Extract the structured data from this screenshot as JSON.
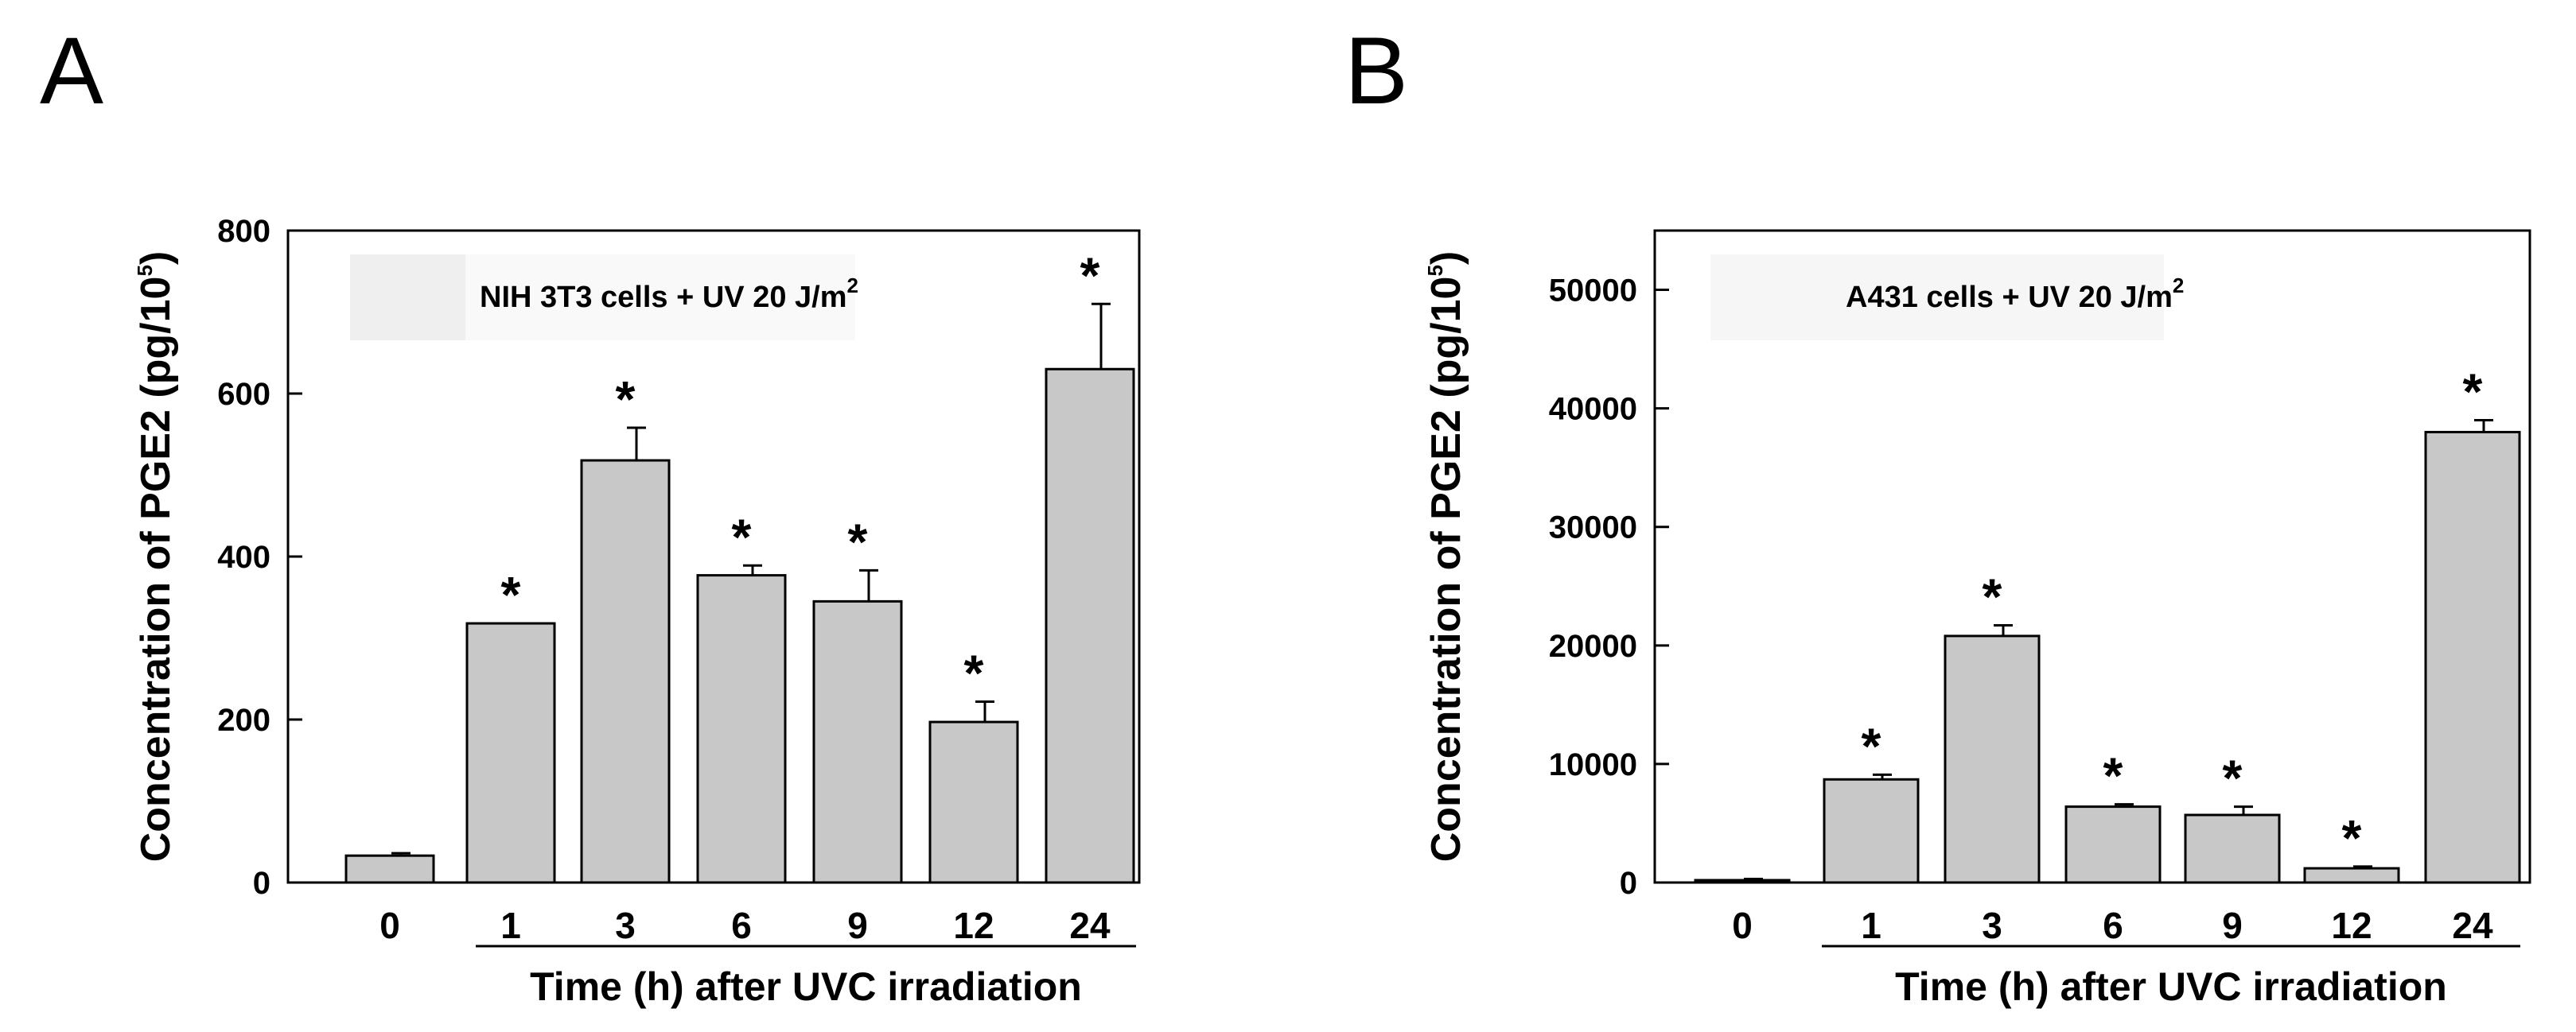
{
  "figure": {
    "background": "#ffffff",
    "bar_color": "#c8c8c8",
    "stroke_color": "#000000"
  },
  "chart_data": [
    {
      "type": "bar",
      "panel_label": "A",
      "legend_label": "NIH 3T3 cells + UV 20 J/m",
      "legend_superscript": "2",
      "ylabel": "Concentration of PGE2 (pg/10",
      "ylabel_superscript": "5",
      "ylabel_suffix": ")",
      "xlabel": "Time (h) after UVC irradiation",
      "categories": [
        "0",
        "1",
        "3",
        "6",
        "9",
        "12",
        "24"
      ],
      "values": [
        33,
        318,
        518,
        377,
        345,
        197,
        630
      ],
      "errors": [
        3,
        0,
        40,
        12,
        38,
        25,
        80
      ],
      "significance": [
        "",
        "*",
        "*",
        "*",
        "*",
        "*",
        "*"
      ],
      "ylim": [
        0,
        800
      ],
      "yticks": [
        "0",
        "200",
        "400",
        "600",
        "800"
      ],
      "ytick_values": [
        0,
        200,
        400,
        600,
        800
      ]
    },
    {
      "type": "bar",
      "panel_label": "B",
      "legend_label": "A431 cells + UV 20 J/m",
      "legend_superscript": "2",
      "ylabel": "Concentration of PGE2 (pg/10",
      "ylabel_superscript": "5",
      "ylabel_suffix": ")",
      "xlabel": "Time (h) after UVC irradiation",
      "categories": [
        "0",
        "1",
        "3",
        "6",
        "9",
        "12",
        "24"
      ],
      "values": [
        200,
        8700,
        20800,
        6400,
        5700,
        1200,
        38000
      ],
      "errors": [
        100,
        400,
        900,
        200,
        700,
        150,
        1000
      ],
      "significance": [
        "",
        "*",
        "*",
        "*",
        "*",
        "*",
        "*"
      ],
      "ylim": [
        0,
        55000
      ],
      "yticks": [
        "0",
        "10000",
        "20000",
        "30000",
        "40000",
        "50000"
      ],
      "ytick_values": [
        0,
        10000,
        20000,
        30000,
        40000,
        50000
      ]
    }
  ]
}
